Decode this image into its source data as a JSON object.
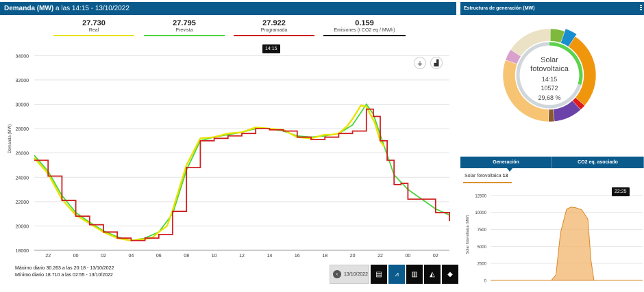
{
  "header": {
    "title": "Demanda (MW)",
    "subtitle": "a las 14:15 - 13/10/2022"
  },
  "kpis": [
    {
      "value": "27.730",
      "label": "Real",
      "color": "#e8e200"
    },
    {
      "value": "27.795",
      "label": "Prevista",
      "color": "#49d63b"
    },
    {
      "value": "27.922",
      "label": "Programada",
      "color": "#d01f1f"
    },
    {
      "value": "0.159",
      "label": "Emisiones (t CO2 eq / MWh)",
      "color": "#000000"
    }
  ],
  "main_chart": {
    "tooltip": "14:15",
    "y_label": "Demanda (MW)"
  },
  "chart_data": [
    {
      "type": "line",
      "ylabel": "Demanda (MW)",
      "ylim": [
        18000,
        35200
      ],
      "y_ticks": [
        18000,
        20000,
        22000,
        24000,
        26000,
        28000,
        30000,
        32000,
        34000
      ],
      "x_ticks": [
        "22",
        "00",
        "02",
        "04",
        "06",
        "08",
        "10",
        "12",
        "14",
        "16",
        "18",
        "20",
        "22",
        "00",
        "02"
      ],
      "x_range_hours": [
        21,
        51
      ],
      "grid": true,
      "series": [
        {
          "name": "Real",
          "color": "#e8e200",
          "x": [
            21.0,
            22.0,
            23.0,
            24.0,
            25.0,
            26.0,
            27.0,
            28.0,
            28.8,
            29.5,
            30.0,
            30.6,
            31.0,
            32.0,
            33.0,
            34.0,
            35.0,
            36.0,
            37.0,
            38.0,
            39.0,
            40.0,
            41.0,
            42.0,
            42.5,
            43.0,
            43.6,
            44.0,
            44.6,
            45.0,
            45.6,
            46.0,
            46.3
          ],
          "y": [
            25600,
            24300,
            22200,
            20900,
            20200,
            19500,
            19000,
            18800,
            18900,
            19000,
            19500,
            20000,
            21300,
            25000,
            27200,
            27300,
            27600,
            27700,
            28100,
            28000,
            27900,
            27300,
            27200,
            27500,
            27500,
            27600,
            28200,
            28800,
            29900,
            29800,
            28500,
            27000,
            26500
          ]
        },
        {
          "name": "Prevista",
          "color": "#49d63b",
          "x": [
            21.0,
            22.0,
            23.0,
            24.0,
            25.0,
            26.0,
            27.0,
            28.0,
            29.0,
            30.0,
            31.0,
            32.0,
            33.0,
            34.0,
            35.0,
            36.0,
            37.0,
            38.0,
            39.0,
            40.0,
            41.0,
            42.0,
            43.0,
            44.0,
            45.0,
            45.5,
            46.0,
            47.0,
            48.0,
            49.0,
            50.0,
            51.0
          ],
          "y": [
            25800,
            24500,
            22500,
            21100,
            20300,
            19600,
            19100,
            18800,
            19000,
            19500,
            21000,
            24600,
            27000,
            27300,
            27500,
            27700,
            28000,
            28000,
            27800,
            27400,
            27300,
            27400,
            27600,
            28300,
            30000,
            29200,
            27500,
            24200,
            23000,
            22200,
            21400,
            20900
          ]
        },
        {
          "name": "Programada",
          "color": "#d01f1f",
          "x": [
            21.0,
            22.0,
            23.0,
            24.0,
            25.0,
            26.0,
            27.0,
            28.0,
            29.0,
            30.0,
            31.0,
            32.0,
            33.0,
            34.0,
            35.0,
            36.0,
            37.0,
            38.0,
            39.0,
            40.0,
            41.0,
            42.0,
            43.0,
            44.0,
            45.0,
            45.5,
            46.0,
            46.5,
            47.0,
            47.5,
            48.0,
            49.0,
            50.0,
            51.0
          ],
          "y": [
            25400,
            24100,
            22100,
            20800,
            20100,
            19500,
            19000,
            18800,
            19000,
            19300,
            21200,
            24800,
            27000,
            27200,
            27400,
            27600,
            28000,
            27900,
            27800,
            27300,
            27100,
            27300,
            27600,
            27800,
            29600,
            29000,
            27000,
            25400,
            23400,
            23500,
            22200,
            22200,
            21100,
            20400
          ]
        }
      ]
    },
    {
      "type": "pie",
      "title": "Estructura de generación (MW)",
      "center_labels": [
        "Solar",
        "fotovoltaica",
        "14:15",
        "10572",
        "29,68 %"
      ],
      "slices": [
        {
          "color": "#7fb93c",
          "value": 5
        },
        {
          "color": "#1a8fd0",
          "value": 4
        },
        {
          "color": "#f0960d",
          "value": 27
        },
        {
          "color": "#e01b1b",
          "value": 2
        },
        {
          "color": "#6b43a8",
          "value": 10
        },
        {
          "color": "#8b5a2b",
          "value": 2
        },
        {
          "color": "#f6c473",
          "value": 30
        },
        {
          "color": "#d9a0cc",
          "value": 4
        },
        {
          "color": "#ebe2c6",
          "value": 16
        }
      ],
      "inner_ring_value": 29.68,
      "inner_ring_color": "#5bd34a"
    },
    {
      "type": "area",
      "ylabel": "Solar fotovoltaica (MW)",
      "ylim": [
        0,
        13500
      ],
      "y_ticks": [
        0,
        2500,
        5000,
        7500,
        10000,
        12500
      ],
      "color": "#f2b46c",
      "x": [
        0,
        0.4,
        0.43,
        0.46,
        0.5,
        0.53,
        0.56,
        0.6,
        0.64,
        0.66,
        0.68,
        1.0
      ],
      "y": [
        0,
        0,
        800,
        7000,
        10500,
        10800,
        10700,
        10400,
        9000,
        3000,
        0,
        0
      ]
    }
  ],
  "stats": {
    "max": "Máximo diario 30.263 a las 20:18 - 13/10/2022",
    "min": "Mínimo diario 18.710 a las 02:55 - 13/10/2022"
  },
  "nav": {
    "date": "13/10/2022"
  },
  "right_panel": {
    "title": "Estructura de generación (MW)",
    "tab_generacion": "Generación",
    "tab_co2": "CO2 eq. asociado",
    "series_label": "Solar fotovoltaica",
    "series_value": "13",
    "mini_tooltip": "22:25",
    "mini_y_label": "Solar fotovoltaica (MW)"
  },
  "donut_center": {
    "line1": "Solar",
    "line2": "fotovoltaica",
    "time": "14:15",
    "value": "10572",
    "percent": "29,68 %"
  },
  "icons": {
    "eolic": "wind-turbine-icon",
    "factory": "factory-icon",
    "back": "chevron-left-icon",
    "table": "table-icon",
    "linechart": "line-chart-icon",
    "barcodes": "bars-icon",
    "area": "area-chart-icon",
    "map": "spain-map-icon"
  }
}
